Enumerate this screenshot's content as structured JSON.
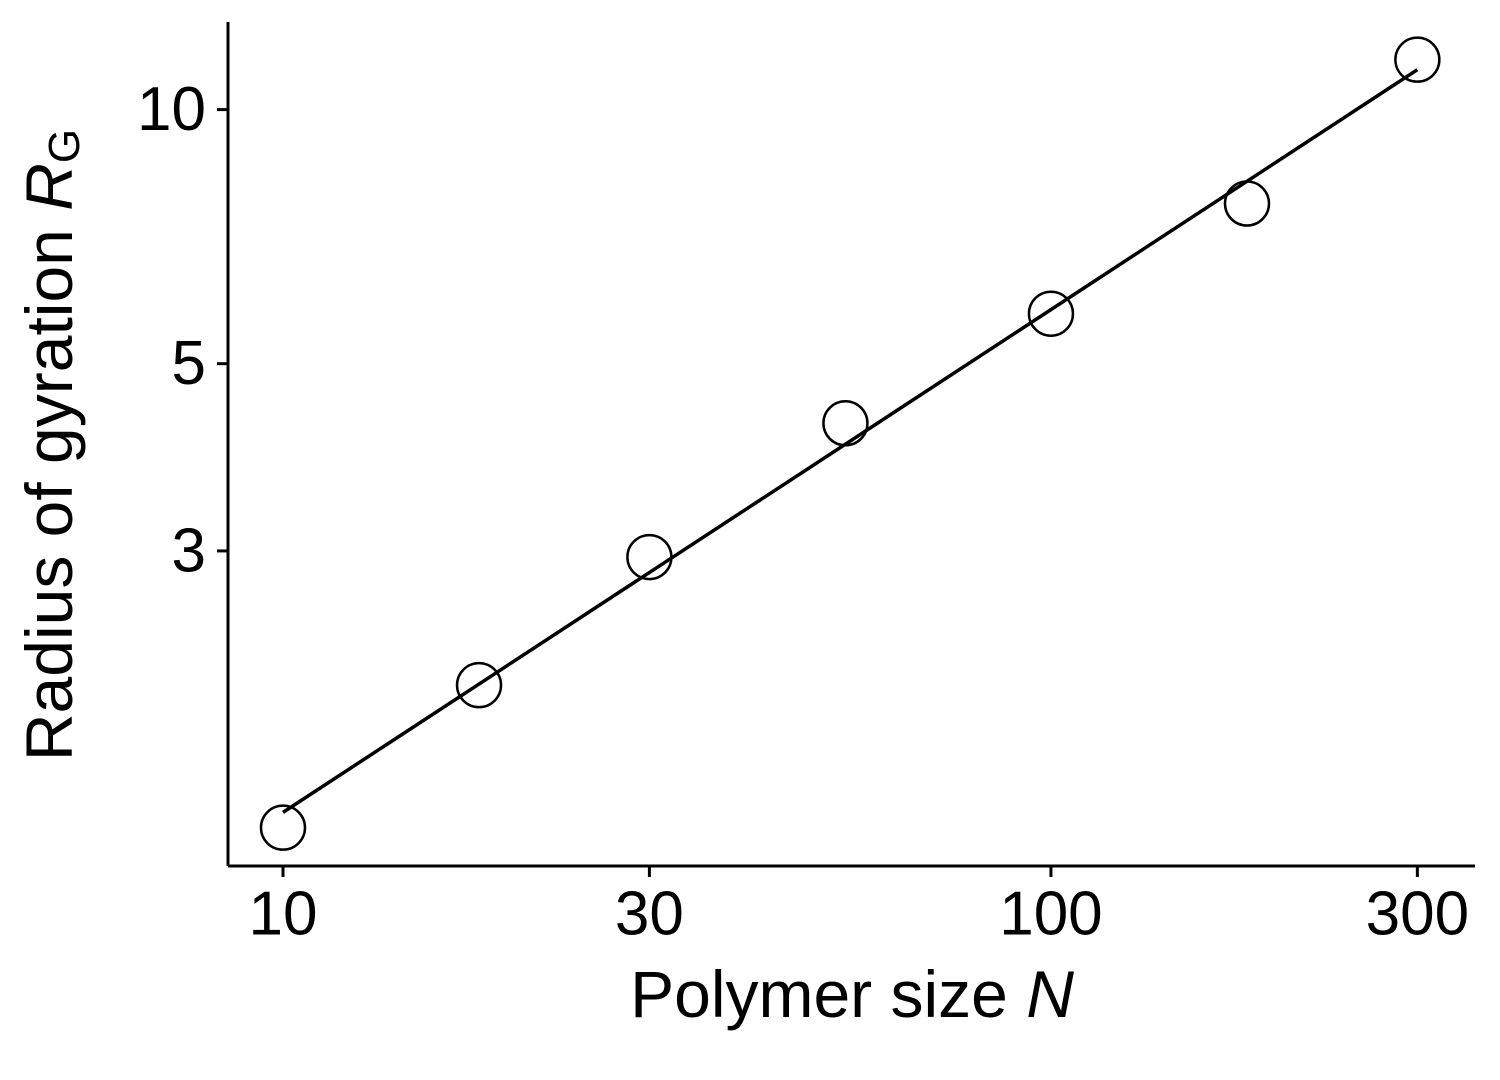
{
  "chart_data": {
    "type": "scatter",
    "xlabel": {
      "text": "Polymer size",
      "var": "N"
    },
    "ylabel": {
      "text": "Radius of gyration",
      "var": "R",
      "sub": "G"
    },
    "series": [
      {
        "color": "#000000",
        "x": [
          10,
          18,
          30,
          54,
          100,
          180,
          300
        ],
        "values": [
          1.41,
          2.08,
          2.95,
          4.25,
          5.73,
          7.74,
          11.46
        ]
      }
    ],
    "fit": {
      "color": "#000000",
      "x": [
        10,
        300
      ],
      "values": [
        1.47,
        11.15
      ]
    },
    "xscale": "log",
    "yscale": "log",
    "xlim": [
      8.48,
      356.6
    ],
    "ylim": [
      1.27,
      12.7
    ],
    "xticks": [
      10,
      30,
      100,
      300
    ],
    "yticks": [
      3,
      5,
      10
    ],
    "grid": false
  }
}
